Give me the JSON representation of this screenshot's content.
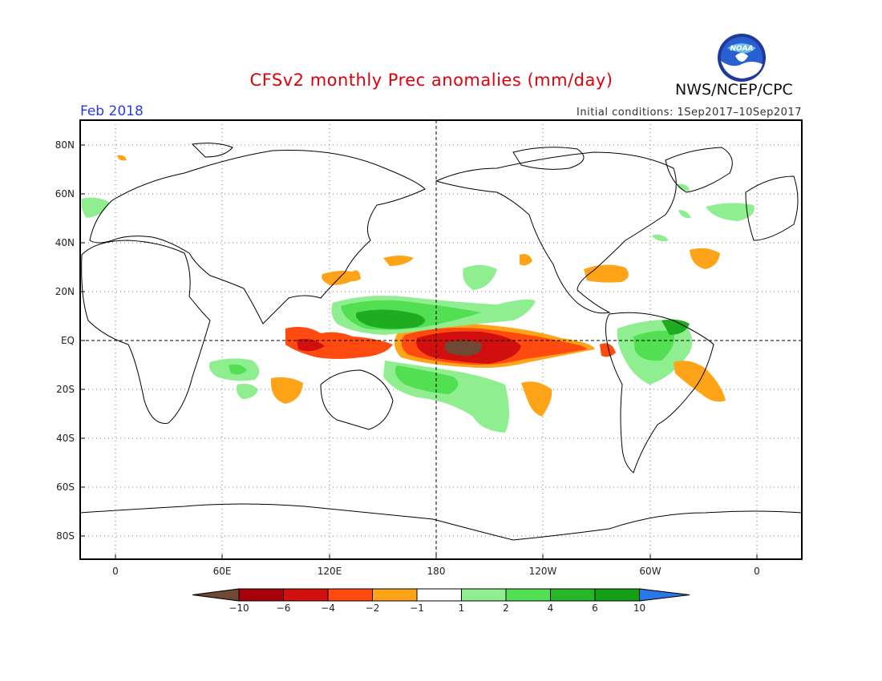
{
  "title": "CFSv2 monthly Prec anomalies (mm/day)",
  "agency": "NWS/NCEP/CPC",
  "logo_text": "NOAA",
  "month_label": "Feb 2018",
  "initial_conditions": "Initial conditions: 1Sep2017–10Sep2017",
  "map": {
    "lat_labels": [
      "80N",
      "60N",
      "40N",
      "20N",
      "EQ",
      "20S",
      "40S",
      "60S",
      "80S"
    ],
    "lon_labels": [
      "0",
      "60E",
      "120E",
      "180",
      "120W",
      "60W",
      "0"
    ]
  },
  "legend": {
    "labels": [
      "−10",
      "−6",
      "−4",
      "−2",
      "−1",
      "1",
      "2",
      "4",
      "6",
      "10"
    ],
    "colors": [
      "#6e4a36",
      "#a8000a",
      "#d20f0f",
      "#ff4a10",
      "#ffa318",
      "#ffffff",
      "#8fee8f",
      "#52df52",
      "#27b827",
      "#14a014",
      "#2a77e8"
    ]
  },
  "colors": {
    "dry_strong": "#6e4a36",
    "dry_heavy": "#c80a0a",
    "dry_mid": "#f03a10",
    "dry_light": "#ffa318",
    "wet_light": "#8fee8f",
    "wet_mid": "#52df52",
    "wet_heavy": "#20ac20",
    "title_red": "#e0000a",
    "label_blue": "#2a3de0"
  }
}
